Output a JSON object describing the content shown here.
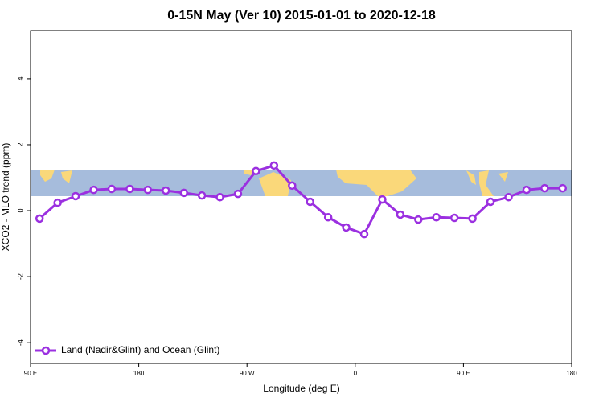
{
  "chart_data": {
    "type": "line",
    "title": "0-15N May (Ver 10)   2015-01-01 to 2020-12-18",
    "xlabel": "Longitude (deg E)",
    "ylabel": "XCO2 - MLO trend (ppm)",
    "x": [
      97.5,
      112.5,
      127.5,
      142.5,
      157.5,
      172.5,
      187.5,
      202.5,
      217.5,
      232.5,
      247.5,
      262.5,
      277.5,
      292.5,
      307.5,
      322.5,
      337.5,
      352.5,
      367.5,
      382.5,
      397.5,
      412.5,
      427.5,
      442.5,
      457.5,
      472.5,
      487.5,
      502.5,
      517.5,
      532.5
    ],
    "series": [
      {
        "name": "Land (Nadir&Glint) and Ocean (Glint)",
        "color": "#9b30e0",
        "values": [
          -0.24,
          0.24,
          0.44,
          0.63,
          0.66,
          0.66,
          0.63,
          0.61,
          0.54,
          0.46,
          0.41,
          0.51,
          1.2,
          1.37,
          0.76,
          0.27,
          -0.2,
          -0.51,
          -0.71,
          0.34,
          -0.12,
          -0.27,
          -0.2,
          -0.22,
          -0.24,
          0.27,
          0.41,
          0.63,
          0.68,
          0.68
        ]
      }
    ],
    "xlim": [
      90,
      540
    ],
    "xticks": [
      {
        "value": 90,
        "label": "90 E"
      },
      {
        "value": 180,
        "label": "180"
      },
      {
        "value": 270,
        "label": "90 W"
      },
      {
        "value": 360,
        "label": "0"
      },
      {
        "value": 450,
        "label": "90 E"
      },
      {
        "value": 540,
        "label": "180"
      }
    ],
    "ylim": [
      -4.63,
      5.46
    ],
    "yticks": [
      -4,
      -2,
      0,
      2,
      4
    ],
    "legend": "lower left"
  }
}
